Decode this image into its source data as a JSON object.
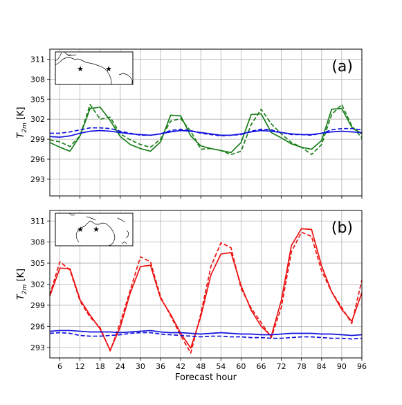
{
  "chart_data": [
    {
      "type": "line",
      "panel_label": "(a)",
      "xlabel": "",
      "ylabel": "T_2m [K]",
      "ylabel_main": "T",
      "ylabel_sub": "2m",
      "ylabel_unit": "[K]",
      "xlim": [
        3,
        96
      ],
      "ylim": [
        290.5,
        312.5
      ],
      "xticks": [
        6,
        12,
        18,
        24,
        30,
        36,
        42,
        48,
        54,
        60,
        66,
        72,
        78,
        84,
        90,
        96
      ],
      "yticks": [
        293,
        296,
        299,
        302,
        305,
        308,
        311
      ],
      "grid": true,
      "inset": "map-south-america",
      "series": [
        {
          "color": "#1a7f1a",
          "style": "solid",
          "x": [
            3,
            6,
            9,
            12,
            15,
            18,
            21,
            24,
            27,
            30,
            33,
            36,
            39,
            42,
            45,
            48,
            51,
            54,
            57,
            60,
            63,
            66,
            69,
            72,
            75,
            78,
            81,
            84,
            87,
            90,
            93,
            96
          ],
          "values": [
            298.5,
            297.8,
            297.2,
            299.5,
            303.6,
            303.8,
            301.8,
            299.4,
            298.2,
            297.6,
            297.2,
            298.6,
            302.6,
            302.5,
            299.5,
            298.0,
            297.6,
            297.3,
            297.0,
            298.5,
            302.7,
            302.8,
            300.0,
            299.2,
            298.3,
            297.8,
            297.5,
            298.8,
            303.5,
            303.6,
            300.8,
            299.8
          ]
        },
        {
          "color": "#1a7f1a",
          "style": "dashed",
          "x": [
            3,
            6,
            9,
            12,
            15,
            18,
            21,
            24,
            27,
            30,
            33,
            36,
            39,
            42,
            45,
            48,
            51,
            54,
            57,
            60,
            63,
            66,
            69,
            72,
            75,
            78,
            81,
            84,
            87,
            90,
            93,
            96
          ],
          "values": [
            298.9,
            298.6,
            297.9,
            299.5,
            304.2,
            302.0,
            302.3,
            299.8,
            298.9,
            298.2,
            297.8,
            299.0,
            301.7,
            302.1,
            300.2,
            297.5,
            297.6,
            297.3,
            296.7,
            297.2,
            301.2,
            303.5,
            301.3,
            299.8,
            298.5,
            297.8,
            296.7,
            298.2,
            302.7,
            304.2,
            301.0,
            299.2
          ]
        },
        {
          "color": "#1010e0",
          "style": "solid",
          "x": [
            3,
            6,
            9,
            12,
            15,
            18,
            21,
            24,
            27,
            30,
            33,
            36,
            39,
            42,
            45,
            48,
            51,
            54,
            57,
            60,
            63,
            66,
            69,
            72,
            75,
            78,
            81,
            84,
            87,
            90,
            93,
            96
          ],
          "values": [
            299.4,
            299.3,
            299.5,
            299.9,
            300.2,
            300.3,
            300.2,
            300.0,
            299.8,
            299.7,
            299.6,
            299.8,
            300.1,
            300.3,
            300.2,
            300.0,
            299.8,
            299.6,
            299.6,
            299.8,
            300.1,
            300.3,
            300.2,
            300.0,
            299.8,
            299.7,
            299.7,
            299.9,
            300.1,
            300.2,
            300.1,
            300.0
          ]
        },
        {
          "color": "#1010e0",
          "style": "dashed",
          "x": [
            3,
            6,
            9,
            12,
            15,
            18,
            21,
            24,
            27,
            30,
            33,
            36,
            39,
            42,
            45,
            48,
            51,
            54,
            57,
            60,
            63,
            66,
            69,
            72,
            75,
            78,
            81,
            84,
            87,
            90,
            93,
            96
          ],
          "values": [
            299.9,
            299.9,
            300.1,
            300.4,
            300.7,
            300.7,
            300.6,
            300.2,
            299.9,
            299.6,
            299.6,
            299.8,
            300.3,
            300.5,
            300.3,
            299.9,
            299.7,
            299.5,
            299.6,
            299.7,
            300.2,
            300.5,
            300.4,
            300.0,
            299.7,
            299.7,
            299.6,
            299.9,
            300.4,
            300.6,
            300.6,
            300.4
          ]
        }
      ]
    },
    {
      "type": "line",
      "panel_label": "(b)",
      "xlabel": "Forecast hour",
      "ylabel": "T_2m [K]",
      "ylabel_main": "T",
      "ylabel_sub": "2m",
      "ylabel_unit": "[K]",
      "xlim": [
        3,
        96
      ],
      "ylim": [
        291.5,
        312.5
      ],
      "xticks": [
        6,
        12,
        18,
        24,
        30,
        36,
        42,
        48,
        54,
        60,
        66,
        72,
        78,
        84,
        90,
        96
      ],
      "yticks": [
        293,
        296,
        299,
        302,
        305,
        308,
        311
      ],
      "grid": true,
      "inset": "map-australia",
      "series": [
        {
          "color": "#ee1111",
          "style": "solid",
          "x": [
            3,
            6,
            9,
            12,
            15,
            18,
            21,
            24,
            27,
            30,
            33,
            36,
            39,
            42,
            45,
            48,
            51,
            54,
            57,
            60,
            63,
            66,
            69,
            72,
            75,
            78,
            81,
            84,
            87,
            90,
            93,
            96
          ],
          "values": [
            300.3,
            304.3,
            304.2,
            299.8,
            297.6,
            295.6,
            292.6,
            295.9,
            300.8,
            304.5,
            304.7,
            300.0,
            297.7,
            295.0,
            292.9,
            297.4,
            303.3,
            306.3,
            306.5,
            301.8,
            298.3,
            296.0,
            294.6,
            299.7,
            307.5,
            309.9,
            309.8,
            304.6,
            300.9,
            298.4,
            296.7,
            300.8
          ]
        },
        {
          "color": "#ee1111",
          "style": "dashed",
          "x": [
            3,
            6,
            9,
            12,
            15,
            18,
            21,
            24,
            27,
            30,
            33,
            36,
            39,
            42,
            45,
            48,
            51,
            54,
            57,
            60,
            63,
            66,
            69,
            72,
            75,
            78,
            81,
            84,
            87,
            90,
            93,
            96
          ],
          "values": [
            300.5,
            305.2,
            304.0,
            299.6,
            297.3,
            295.8,
            292.5,
            296.5,
            301.2,
            305.9,
            305.2,
            300.2,
            297.5,
            294.7,
            292.2,
            297.8,
            304.5,
            307.9,
            307.2,
            301.4,
            298.6,
            296.5,
            294.4,
            298.7,
            306.6,
            309.4,
            308.8,
            303.9,
            300.9,
            298.7,
            296.4,
            302.6
          ]
        },
        {
          "color": "#1010e0",
          "style": "solid",
          "x": [
            3,
            6,
            9,
            12,
            15,
            18,
            21,
            24,
            27,
            30,
            33,
            36,
            39,
            42,
            45,
            48,
            51,
            54,
            57,
            60,
            63,
            66,
            69,
            72,
            75,
            78,
            81,
            84,
            87,
            90,
            93,
            96
          ],
          "values": [
            295.3,
            295.4,
            295.4,
            295.3,
            295.2,
            295.2,
            295.2,
            295.1,
            295.2,
            295.3,
            295.4,
            295.2,
            295.1,
            295.1,
            295.0,
            294.9,
            295.0,
            295.1,
            295.0,
            294.9,
            294.9,
            294.8,
            294.8,
            294.9,
            295.0,
            295.0,
            295.0,
            294.9,
            294.9,
            294.8,
            294.7,
            294.8
          ]
        },
        {
          "color": "#1010e0",
          "style": "dashed",
          "x": [
            3,
            6,
            9,
            12,
            15,
            18,
            21,
            24,
            27,
            30,
            33,
            36,
            39,
            42,
            45,
            48,
            51,
            54,
            57,
            60,
            63,
            66,
            69,
            72,
            75,
            78,
            81,
            84,
            87,
            90,
            93,
            96
          ],
          "values": [
            295.0,
            295.1,
            295.0,
            294.7,
            294.6,
            294.6,
            294.7,
            294.8,
            295.0,
            295.1,
            295.1,
            294.9,
            294.8,
            294.7,
            294.6,
            294.5,
            294.6,
            294.6,
            294.5,
            294.5,
            294.4,
            294.4,
            294.3,
            294.3,
            294.4,
            294.5,
            294.5,
            294.4,
            294.3,
            294.3,
            294.2,
            294.3
          ]
        }
      ]
    }
  ]
}
